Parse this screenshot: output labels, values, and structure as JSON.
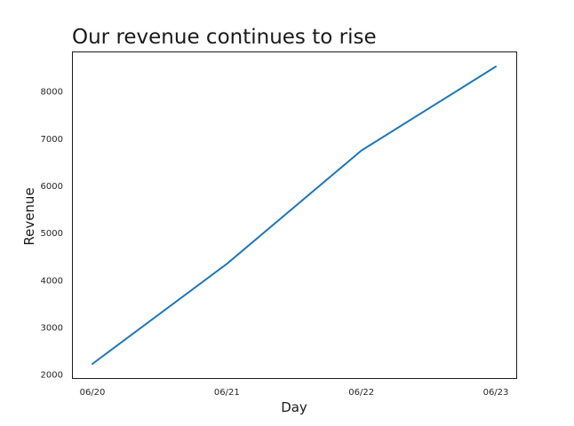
{
  "chart_data": {
    "type": "line",
    "title": "Our revenue continues to rise",
    "xlabel": "Day",
    "ylabel": "Revenue",
    "categories": [
      "06/20",
      "06/21",
      "06/22",
      "06/23"
    ],
    "series": [
      {
        "values": [
          2230,
          4350,
          6750,
          8530
        ],
        "color": "#1f77b4"
      }
    ],
    "ylim": [
      1920,
      8840
    ],
    "yticks": [
      2000,
      3000,
      4000,
      5000,
      6000,
      7000,
      8000
    ],
    "grid": false,
    "legend": "none"
  }
}
